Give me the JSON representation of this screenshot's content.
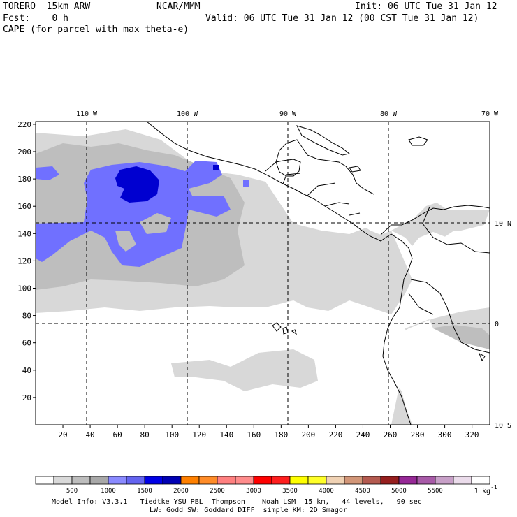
{
  "header": {
    "model": "TORERO  15km ARW",
    "center": "NCAR/MMM",
    "init": "Init: 06 UTC Tue 31 Jan 12",
    "fcst": "Fcst:    0 h",
    "valid": "Valid: 06 UTC Tue 31 Jan 12 (00 CST Tue 31 Jan 12)",
    "field": "CAPE (for parcel with max theta-e)"
  },
  "axes": {
    "lon_labels": [
      "110 W",
      "100 W",
      "90 W",
      "80 W",
      "70 W"
    ],
    "lat_labels": [
      "10 N",
      "0",
      "10 S"
    ],
    "y_ticks": [
      20,
      40,
      60,
      80,
      100,
      120,
      140,
      160,
      180,
      200,
      220
    ],
    "x_ticks": [
      20,
      40,
      60,
      80,
      100,
      120,
      140,
      160,
      180,
      200,
      220,
      240,
      260,
      280,
      300,
      320
    ]
  },
  "colorbar": {
    "labels": [
      "500",
      "1000",
      "1500",
      "2000",
      "2500",
      "3000",
      "3500",
      "4000",
      "4500",
      "5000",
      "5500"
    ],
    "units": "J kg",
    "units_exp": "-1",
    "colors": [
      "#ffffff",
      "#d9d9d9",
      "#bdbdbd",
      "#a8a8a8",
      "#8a8aff",
      "#6464f0",
      "#0000e6",
      "#0000b4",
      "#ff8000",
      "#ff8c28",
      "#ff8080",
      "#ff8c8c",
      "#ff0000",
      "#ff1e1e",
      "#ffff00",
      "#ffff28",
      "#f0d2b4",
      "#d29678",
      "#b45a50",
      "#961e1e",
      "#962896",
      "#a85aa8",
      "#c8a0c8",
      "#ebdceb",
      "#ffffff"
    ]
  },
  "footer": {
    "line1": "Model Info: V3.3.1   Tiedtke YSU PBL  Thompson    Noah LSM  15 km,   44 levels,   90 sec",
    "line2": "LW: Godd SW: Goddard DIFF  simple KM: 2D Smagor"
  },
  "map": {
    "land_color": "#ffffff",
    "shade_light": "#d8d8d8",
    "shade_mid": "#bebebe",
    "shade_blue": "#7070ff",
    "shade_dark_blue": "#0000d0"
  }
}
